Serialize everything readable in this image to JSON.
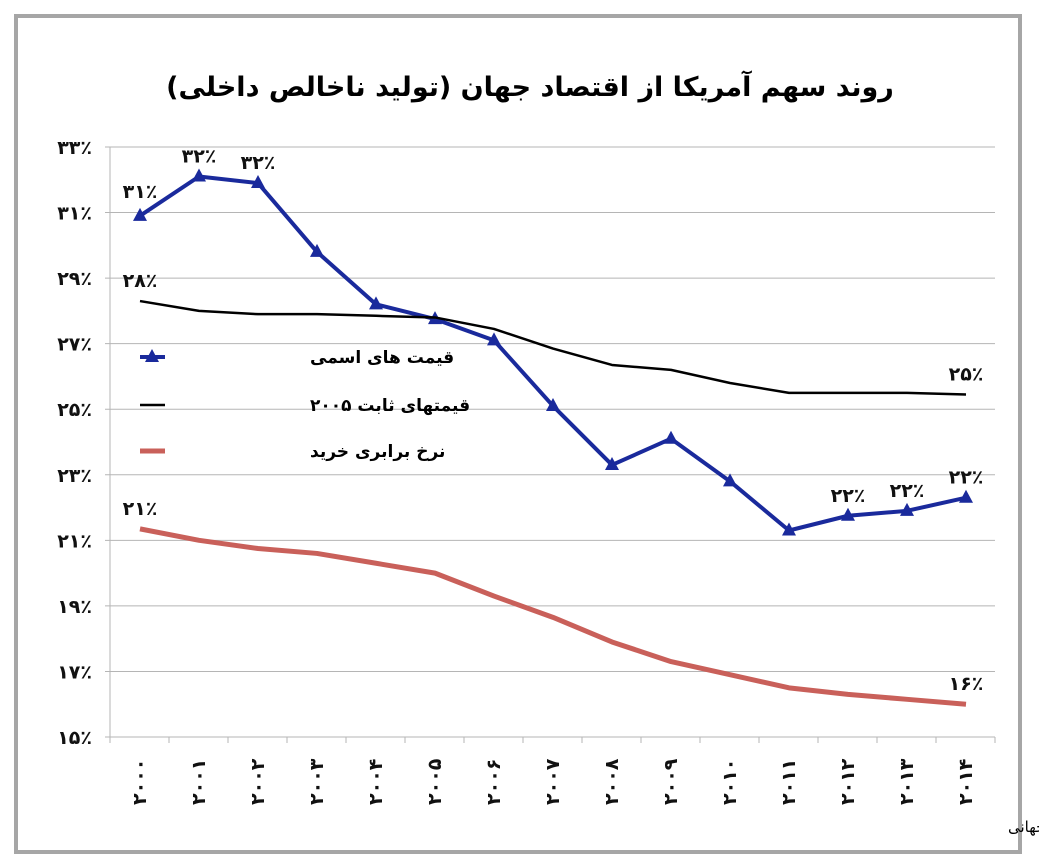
{
  "chart_data": {
    "type": "line",
    "title": "روند سهم آمریکا از اقتصاد جهان (تولید ناخالص داخلی)",
    "xlabel": "",
    "ylabel": "",
    "ylim": [
      15,
      33
    ],
    "y_ticks": [
      15,
      17,
      19,
      21,
      23,
      25,
      27,
      29,
      31,
      33
    ],
    "y_tick_labels": [
      "۱۵٪",
      "۱۷٪",
      "۱۹٪",
      "۲۱٪",
      "۲۳٪",
      "۲۵٪",
      "۲۷٪",
      "۲۹٪",
      "۳۱٪",
      "۳۳٪"
    ],
    "grid": "horizontal",
    "legend_position": "left-middle",
    "categories": [
      "۲۰۰۰",
      "۲۰۰۱",
      "۲۰۰۲",
      "۲۰۰۳",
      "۲۰۰۴",
      "۲۰۰۵",
      "۲۰۰۶",
      "۲۰۰۷",
      "۲۰۰۸",
      "۲۰۰۹",
      "۲۰۱۰",
      "۲۰۱۱",
      "۲۰۱۲",
      "۲۰۱۳",
      "۲۰۱۴"
    ],
    "x": [
      2000,
      2001,
      2002,
      2003,
      2004,
      2005,
      2006,
      2007,
      2008,
      2009,
      2010,
      2011,
      2012,
      2013,
      2014
    ],
    "series": [
      {
        "name": "قیمت های اسمی",
        "color": "#1a2a9c",
        "marker": "triangle",
        "values": [
          30.9,
          32.1,
          31.9,
          29.8,
          28.2,
          27.75,
          27.1,
          25.1,
          23.3,
          24.1,
          22.8,
          21.3,
          21.75,
          21.9,
          22.3
        ],
        "data_labels": {
          "0": "۳۱٪",
          "1": "۳۲٪",
          "2": "۳۲٪",
          "12": "۲۲٪",
          "13": "۲۲٪",
          "14": "۲۲٪"
        }
      },
      {
        "name": "قیمتهای ثابت ۲۰۰۵",
        "color": "#000000",
        "marker": "none",
        "values": [
          28.3,
          28.0,
          27.9,
          27.9,
          27.85,
          27.8,
          27.45,
          26.85,
          26.35,
          26.2,
          25.8,
          25.5,
          25.5,
          25.5,
          25.45
        ],
        "data_labels": {
          "0": "۲۸٪",
          "14": "۲۵٪"
        }
      },
      {
        "name": "نرخ برابری خرید",
        "color": "#c9605a",
        "marker": "none",
        "values": [
          21.35,
          21.0,
          20.75,
          20.6,
          20.3,
          20.0,
          19.3,
          18.65,
          17.9,
          17.3,
          16.9,
          16.5,
          16.3,
          16.15,
          16.0
        ],
        "data_labels": {
          "0": "۲۱٪",
          "14": "۱۶٪"
        }
      }
    ],
    "footnote": "تحلیل و استنتاج: احسان سلطانی بر اساس داده های بانک جهانی"
  }
}
